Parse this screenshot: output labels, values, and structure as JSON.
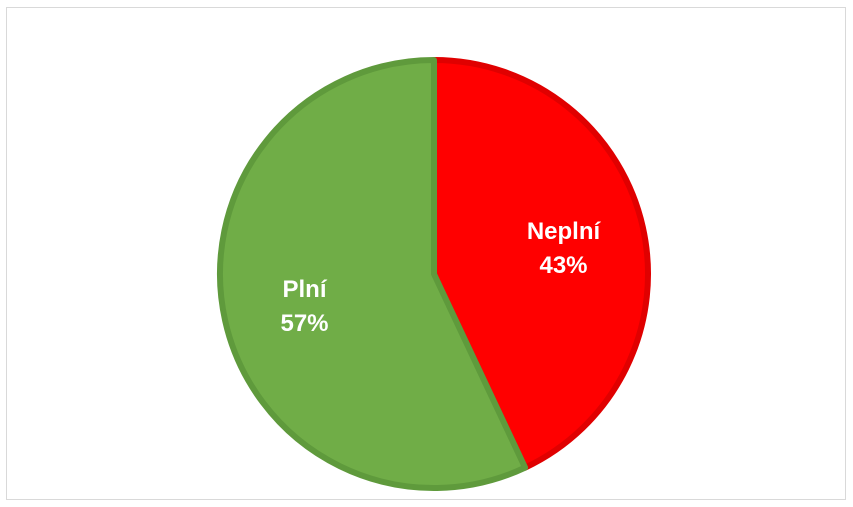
{
  "chart_data": {
    "type": "pie",
    "title": "",
    "categories": [
      "Neplní",
      "Plní"
    ],
    "values": [
      43,
      57
    ],
    "percent_labels": [
      "43%",
      "57%"
    ],
    "colors": [
      "#ff0000",
      "#70ad47"
    ],
    "border_colors": [
      "#e00000",
      "#5f9a3c"
    ],
    "start_angle_deg": 0,
    "direction": "clockwise",
    "legend": "none",
    "data_labels": "category and percent inside slices"
  }
}
